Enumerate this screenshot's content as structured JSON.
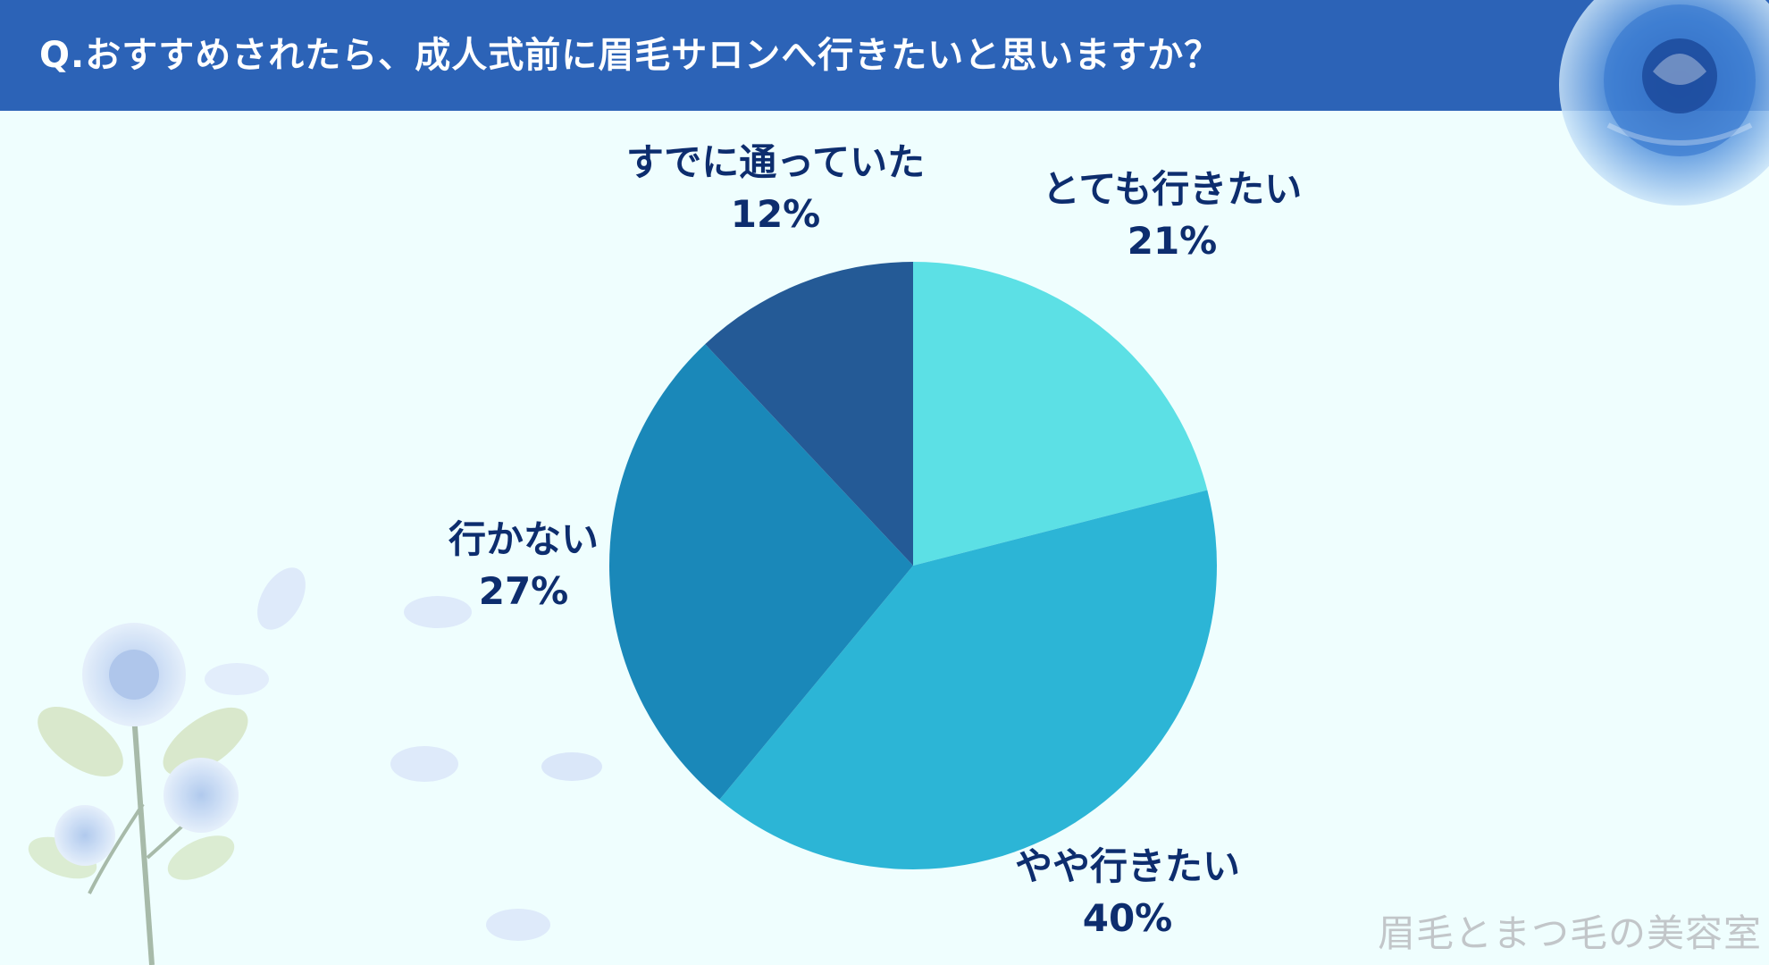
{
  "header": {
    "title": "Q.おすすめされたら、成人式前に眉毛サロンへ行きたいと思いますか？"
  },
  "chart_data": {
    "type": "pie",
    "title": "Q.おすすめされたら、成人式前に眉毛サロンへ行きたいと思いますか？",
    "slices": [
      {
        "label": "とても行きたい",
        "value": 21,
        "value_label": "21%",
        "color": "#5ce0e5"
      },
      {
        "label": "やや行きたい",
        "value": 40,
        "value_label": "40%",
        "color": "#2cb5d6"
      },
      {
        "label": "行かない",
        "value": 27,
        "value_label": "27%",
        "color": "#1a88b9"
      },
      {
        "label": "すでに通っていた",
        "value": 12,
        "value_label": "12%",
        "color": "#245a96"
      }
    ],
    "start": "12 o'clock, clockwise",
    "legend": "none (labels beside slices)"
  },
  "colors": {
    "header": "#2c63b7",
    "background": "#effefe",
    "label_text": "#0d2d6e",
    "watermark": "#c2c6c9"
  },
  "watermark": "眉毛とまつ毛の美容室"
}
